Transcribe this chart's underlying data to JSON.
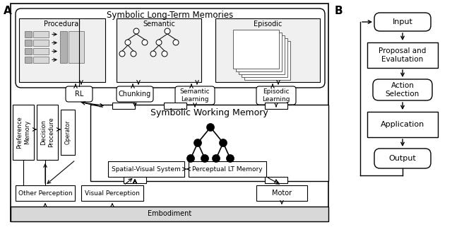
{
  "fig_width": 6.4,
  "fig_height": 3.28,
  "dpi": 100,
  "bg_color": "#ffffff",
  "label_A": "A",
  "label_B": "B",
  "title_ltm": "Symbolic Long-Term Memories",
  "title_wm": "Symbolic Working Memory",
  "title_embodiment": "Embodiment",
  "box_procedural": "Procedural",
  "box_semantic": "Semantic",
  "box_episodic": "Episodic",
  "box_rl": "RL",
  "box_chunking": "Chunking",
  "box_sem_learning": "Semantic\nLearning",
  "box_epis_learning": "Episodic\nLearning",
  "box_pref_memory": "Preference\nMemory",
  "box_decision": "Decision\nProcedure",
  "box_operator": "Operator",
  "box_spatial": "Spatial-Visual System",
  "box_perceptual": "Perceptual LT Memory",
  "box_other_perc": "Other Perception",
  "box_visual_perc": "Visual Perception",
  "box_motor": "Motor",
  "box_input": "Input",
  "box_proposal": "Proposal and\nEvalutation",
  "box_action_sel": "Action\nSelection",
  "box_application": "Application",
  "box_output": "Output"
}
